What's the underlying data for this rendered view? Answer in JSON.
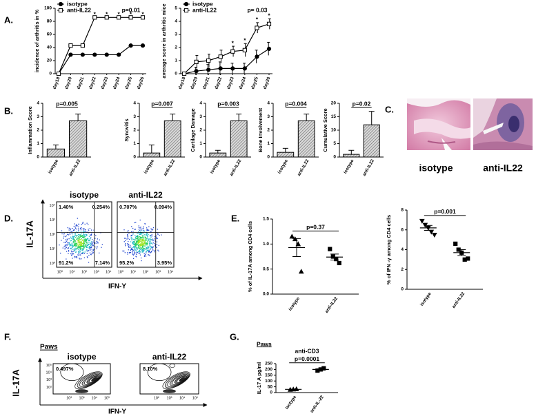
{
  "panel_labels": [
    "A.",
    "B.",
    "C.",
    "D.",
    "E.",
    "F.",
    "G."
  ],
  "chart_data": [
    {
      "type": "line",
      "ylabel": "incidence of arthritis in %",
      "categories": [
        "day18",
        "day20",
        "day21",
        "day22",
        "day23",
        "day24",
        "day25",
        "day26"
      ],
      "series": [
        {
          "name": "isotype",
          "color": "#000000",
          "marker": "circle",
          "values": [
            0,
            29,
            29,
            29,
            29,
            29,
            43,
            43
          ]
        },
        {
          "name": "anti-IL22",
          "color": "#000000",
          "marker": "square",
          "values": [
            0,
            43,
            43,
            86,
            86,
            86,
            86,
            86
          ]
        }
      ],
      "ylim": [
        0,
        100
      ],
      "yticks": [
        0,
        20,
        40,
        60,
        80,
        100
      ],
      "annotation": "p=0.01",
      "stars": [
        {
          "text": "*",
          "category": "day22"
        },
        {
          "text": "*",
          "category": "day23"
        },
        {
          "text": "*",
          "category": "day24"
        },
        {
          "text": "*",
          "category": "day25"
        },
        {
          "text": "*",
          "category": "day26"
        }
      ]
    },
    {
      "type": "line",
      "ylabel": "average score in arthritic mice",
      "categories": [
        "day18",
        "day20",
        "day21",
        "day22",
        "day23",
        "day24",
        "day25",
        "day26"
      ],
      "series": [
        {
          "name": "isotype",
          "color": "#000000",
          "marker": "circle",
          "values": [
            0,
            0.2,
            0.3,
            0.4,
            0.4,
            0.4,
            1.3,
            1.9
          ],
          "errors": [
            0,
            0.3,
            0.4,
            0.5,
            0.4,
            0.4,
            0.5,
            0.5
          ]
        },
        {
          "name": "anti-IL22",
          "color": "#000000",
          "marker": "square",
          "values": [
            0,
            0.9,
            1.0,
            1.3,
            1.7,
            1.8,
            3.5,
            3.8
          ],
          "errors": [
            0,
            0.5,
            0.5,
            0.5,
            0.4,
            0.5,
            0.4,
            0.4
          ]
        }
      ],
      "ylim": [
        0,
        5
      ],
      "yticks": [
        0,
        1,
        2,
        3,
        4,
        5
      ],
      "annotation": "p= 0.03",
      "stars": [
        {
          "text": "*",
          "category": "day23"
        },
        {
          "text": "*",
          "category": "day24"
        },
        {
          "text": "*",
          "category": "day25"
        },
        {
          "text": "*",
          "category": "day26"
        }
      ]
    },
    {
      "type": "bar",
      "ylabel": "Inflammation Score",
      "categories": [
        "isotype",
        "anti-IL22"
      ],
      "values": [
        0.6,
        2.7
      ],
      "errors": [
        0.3,
        0.5
      ],
      "color": "#000000",
      "ylim": [
        0,
        4
      ],
      "yticks": [
        0,
        1,
        2,
        3,
        4
      ],
      "annotation": "p=0.005"
    },
    {
      "type": "bar",
      "ylabel": "Synovitis",
      "categories": [
        "isotype",
        "anti-IL22"
      ],
      "values": [
        0.3,
        2.7
      ],
      "errors": [
        0.6,
        0.5
      ],
      "color": "#000000",
      "ylim": [
        0,
        4
      ],
      "yticks": [
        0,
        1,
        2,
        3,
        4
      ],
      "annotation": "p=0.007"
    },
    {
      "type": "bar",
      "ylabel": "Cartilage Damage",
      "categories": [
        "isotype",
        "anti-IL22"
      ],
      "values": [
        0.3,
        2.7
      ],
      "errors": [
        0.2,
        0.5
      ],
      "color": "#000000",
      "ylim": [
        0,
        4
      ],
      "yticks": [
        0,
        1,
        2,
        3,
        4
      ],
      "annotation": "p=0.003"
    },
    {
      "type": "bar",
      "ylabel": "Bone Involvement",
      "categories": [
        "isotype",
        "anti-IL22"
      ],
      "values": [
        0.35,
        2.7
      ],
      "errors": [
        0.3,
        0.5
      ],
      "color": "#000000",
      "ylim": [
        0,
        4
      ],
      "yticks": [
        0,
        1,
        2,
        3,
        4
      ],
      "annotation": "p=0.004"
    },
    {
      "type": "bar",
      "ylabel": "Cumulative Score",
      "categories": [
        "isotype",
        "anti-IL22"
      ],
      "values": [
        1,
        12
      ],
      "errors": [
        1.5,
        5
      ],
      "color": "#000000",
      "ylim": [
        0,
        20
      ],
      "yticks": [
        0,
        5,
        10,
        15,
        20
      ],
      "annotation": "p=0.02"
    },
    {
      "type": "dot",
      "ylabel": "% of IL-17A among CD4 cells",
      "categories": [
        "isotype",
        "anti-IL22"
      ],
      "color": "#000000",
      "markers": [
        "triangle",
        "square"
      ],
      "points": [
        [
          1.15,
          1.1,
          1.0,
          0.45
        ],
        [
          0.9,
          0.75,
          0.7,
          0.62
        ]
      ],
      "means": [
        0.93,
        0.74
      ],
      "errors": [
        0.18,
        0.06
      ],
      "ylim": [
        0,
        1.5
      ],
      "yticks": [
        {
          "value": 0,
          "label": "0.0"
        },
        0.5,
        {
          "value": 1,
          "label": "1.0"
        },
        1.5
      ],
      "annotation": "p=0.37"
    },
    {
      "type": "dot",
      "ylabel": "% of IFN -γ among CD4  cells",
      "categories": [
        "isotype",
        "anti-IL22"
      ],
      "color": "#000000",
      "markers": [
        "triangle-down",
        "square"
      ],
      "points": [
        [
          6.9,
          6.5,
          6.2,
          5.8,
          5.5
        ],
        [
          4.6,
          4.0,
          3.7,
          3.0,
          3.1
        ]
      ],
      "means": [
        6.2,
        3.7
      ],
      "errors": [
        0.25,
        0.3
      ],
      "ylim": [
        0,
        8
      ],
      "yticks": [
        0,
        2,
        4,
        6,
        8
      ],
      "annotation": "p=0.001"
    },
    {
      "type": "dot",
      "ylabel": "IL-17 A pg/ml",
      "subtitle": "Paws",
      "note": "anti-CD3",
      "categories": [
        "isotype",
        "anti-IL-22"
      ],
      "color": "#000000",
      "markers": [
        "triangle",
        "square"
      ],
      "points": [
        [
          25,
          28,
          30
        ],
        [
          190,
          200,
          210
        ]
      ],
      "means": [
        28,
        200
      ],
      "errors": [
        2,
        6
      ],
      "ylim": [
        0,
        250
      ],
      "yticks": [
        0,
        50,
        100,
        150,
        200,
        250
      ],
      "annotation": "p=0.0001"
    }
  ],
  "histology": {
    "labels": [
      "isotype",
      "anti-IL22"
    ]
  },
  "flow": {
    "titles": [
      "isotype",
      "anti-IL22"
    ],
    "quadrants": [
      [
        "1.40%",
        "0.254%",
        "91.2%",
        "7.14%"
      ],
      [
        "0.707%",
        "0.094%",
        "95.2%",
        "3.95%"
      ]
    ],
    "y_label": "IL-17A",
    "x_label": "IFN-Y",
    "ticks": [
      "10⁰",
      "10¹",
      "10²",
      "10³",
      "10⁴"
    ]
  },
  "contour": {
    "subtitle": "Paws",
    "titles": [
      "isotype",
      "anti-IL22"
    ],
    "gates": [
      "0.497%",
      "8.10%"
    ],
    "y_label": "IL-17A",
    "x_label": "IFN-Y",
    "ticks": [
      "10²",
      "10³",
      "10⁴",
      "10⁵"
    ]
  }
}
